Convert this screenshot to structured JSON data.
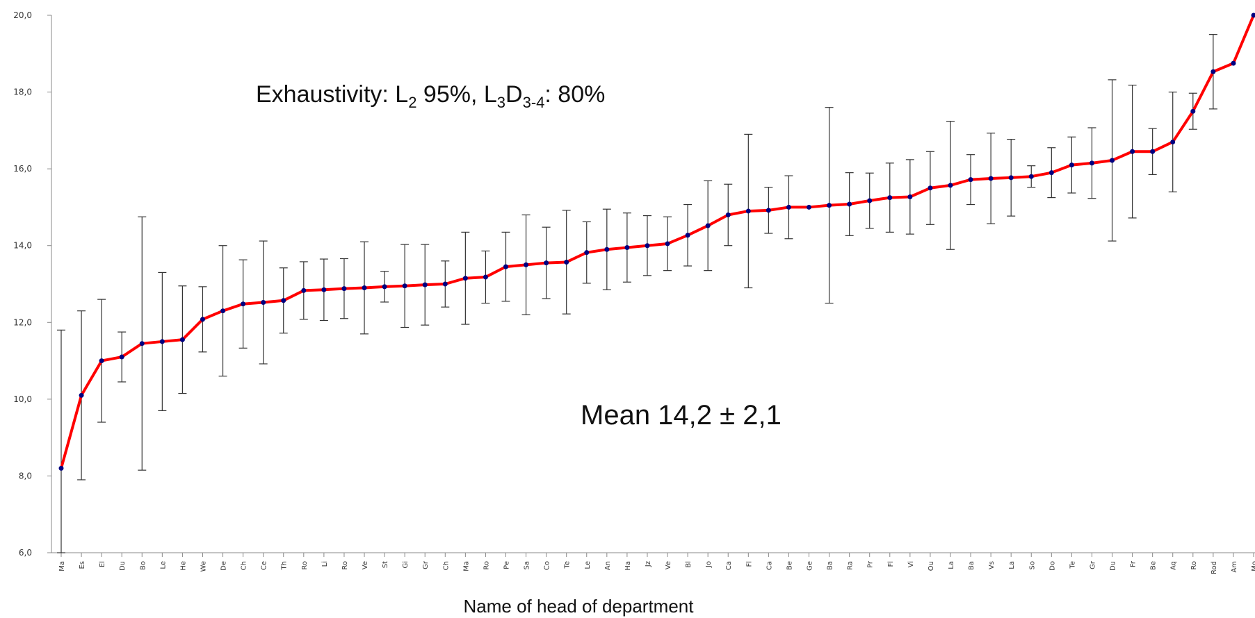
{
  "chart_data": {
    "type": "line",
    "title": "",
    "xlabel": "Name of head of department",
    "ylabel": "",
    "ylim": [
      6.0,
      20.0
    ],
    "yticks": [
      "6,0",
      "8,0",
      "10,0",
      "12,0",
      "14,0",
      "16,0",
      "18,0",
      "20,0"
    ],
    "grid": false,
    "legend": "none",
    "line_color": "#ff0000",
    "marker_color": "#000080",
    "errorbar_color": "#333333",
    "annotations": {
      "exhaustivity": {
        "prefix": "Exhaustivity: L",
        "sub1": "2",
        "mid": " 95%, L",
        "sub2": "3",
        "mid2": "D",
        "sub3": "3-4",
        "suffix": ": 80%"
      },
      "mean": "Mean 14,2 ± 2,1"
    },
    "categories": [
      "Ma",
      "Es",
      "El",
      "Du",
      "Bo",
      "Le",
      "He",
      "We",
      "De",
      "Ch",
      "Ce",
      "Th",
      "Ro",
      "Li",
      "Ro",
      "Ve",
      "St",
      "Gi",
      "Gr",
      "Ch",
      "Ma",
      "Ro",
      "Pe",
      "Sa",
      "Co",
      "Te",
      "Le",
      "An",
      "Ha",
      "Jz",
      "Ve",
      "Bl",
      "Jo",
      "Ca",
      "Fl",
      "Ca",
      "Be",
      "Ge",
      "Ba",
      "Ra",
      "Pr",
      "Fl",
      "Vi",
      "Ou",
      "La",
      "Ba",
      "Vs",
      "La",
      "So",
      "Do",
      "Te",
      "Gr",
      "Du",
      "Fr",
      "Be",
      "Aq",
      "Ro",
      "Rod",
      "Am",
      "Mo"
    ],
    "values": [
      8.2,
      10.1,
      11.0,
      11.1,
      11.45,
      11.5,
      11.55,
      12.08,
      12.3,
      12.48,
      12.52,
      12.57,
      12.83,
      12.85,
      12.88,
      12.9,
      12.93,
      12.95,
      12.98,
      13.0,
      13.15,
      13.18,
      13.45,
      13.5,
      13.55,
      13.57,
      13.82,
      13.9,
      13.95,
      14.0,
      14.05,
      14.27,
      14.52,
      14.8,
      14.9,
      14.92,
      15.0,
      15.0,
      15.05,
      15.08,
      15.17,
      15.25,
      15.27,
      15.5,
      15.57,
      15.72,
      15.75,
      15.77,
      15.8,
      15.9,
      16.1,
      16.15,
      16.22,
      16.45,
      16.45,
      16.7,
      17.5,
      18.53,
      18.75,
      20.0
    ],
    "errors": [
      3.6,
      2.2,
      1.6,
      0.65,
      3.3,
      1.8,
      1.4,
      0.85,
      1.7,
      1.15,
      1.6,
      0.85,
      0.75,
      0.8,
      0.78,
      1.2,
      0.4,
      1.08,
      1.05,
      0.6,
      1.2,
      0.68,
      0.9,
      1.3,
      0.93,
      1.35,
      0.8,
      1.05,
      0.9,
      0.78,
      0.7,
      0.8,
      1.17,
      0.8,
      2.0,
      0.6,
      0.82,
      0.0,
      2.55,
      0.82,
      0.72,
      0.9,
      0.97,
      0.95,
      1.67,
      0.65,
      1.18,
      1.0,
      0.28,
      0.65,
      0.73,
      0.92,
      2.1,
      1.73,
      0.6,
      1.3,
      0.47,
      0.97,
      0.0,
      0.0
    ]
  }
}
